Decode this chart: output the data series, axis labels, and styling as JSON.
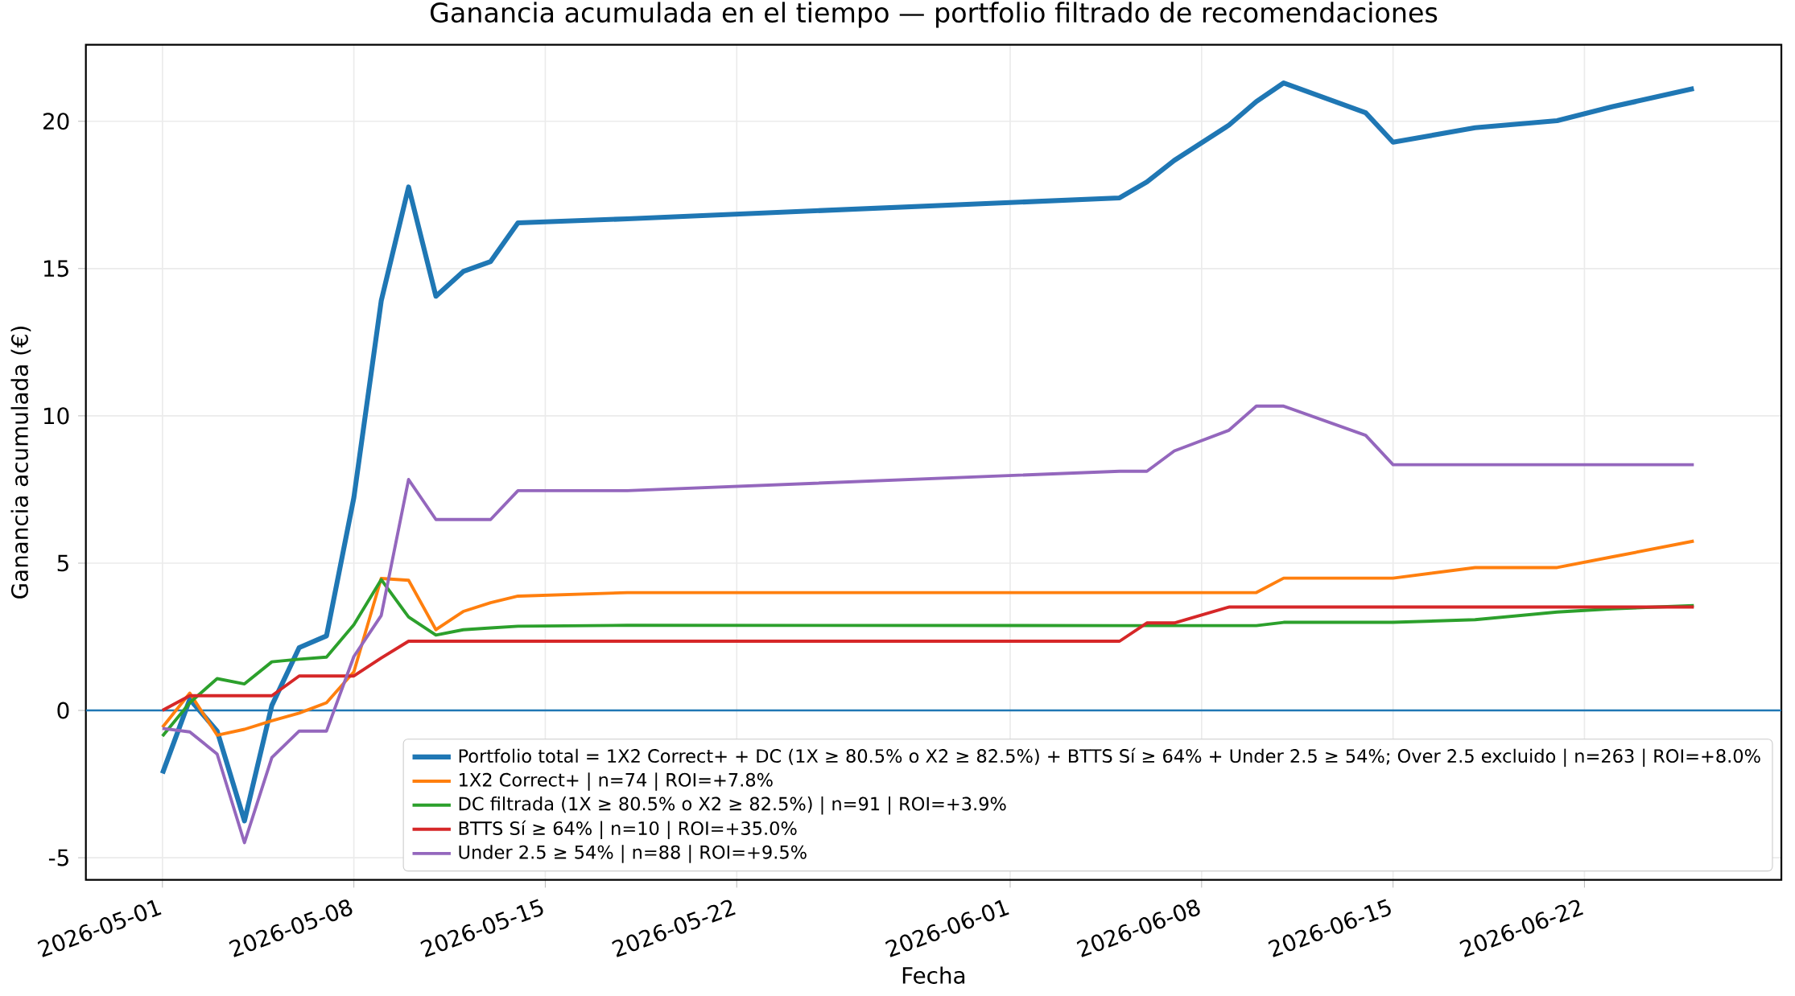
{
  "chart_data": {
    "type": "line",
    "title": "Ganancia acumulada en el tiempo — portfolio filtrado de recomendaciones",
    "xlabel": "Fecha",
    "ylabel": "Ganancia acumulada (€)",
    "x": [
      "2026-05-01",
      "2026-05-02",
      "2026-05-03",
      "2026-05-04",
      "2026-05-05",
      "2026-05-06",
      "2026-05-07",
      "2026-05-08",
      "2026-05-09",
      "2026-05-10",
      "2026-05-11",
      "2026-05-12",
      "2026-05-13",
      "2026-05-14",
      "2026-05-18",
      "2026-06-05",
      "2026-06-06",
      "2026-06-07",
      "2026-06-09",
      "2026-06-10",
      "2026-06-11",
      "2026-06-14",
      "2026-06-15",
      "2026-06-18",
      "2026-06-21",
      "2026-06-23",
      "2026-06-26"
    ],
    "series": [
      {
        "name": "Portfolio total = 1X2 Correct+ + DC (1X ≥ 80.5% o X2 ≥ 82.5%) + BTTS Sí ≥ 64% + Under 2.5 ≥ 54%; Over 2.5 excluido | n=263 | ROI=+8.0%",
        "color": "#1f77b4",
        "values": [
          -2.14,
          0.38,
          -0.7,
          -3.75,
          0.17,
          2.13,
          2.53,
          7.23,
          13.9,
          17.77,
          14.06,
          14.9,
          15.24,
          16.55,
          16.69,
          17.4,
          17.94,
          18.67,
          19.87,
          20.67,
          21.3,
          20.29,
          19.29,
          19.78,
          20.02,
          20.49,
          21.11
        ]
      },
      {
        "name": "1X2 Correct+ | n=74 | ROI=+7.8%",
        "color": "#ff7f0e",
        "values": [
          -0.57,
          0.59,
          -0.84,
          -0.64,
          -0.35,
          -0.09,
          0.26,
          1.31,
          4.48,
          4.42,
          2.74,
          3.36,
          3.66,
          3.88,
          4.0,
          4.0,
          4.0,
          4.0,
          4.0,
          4.0,
          4.49,
          4.49,
          4.49,
          4.85,
          4.85,
          5.21,
          5.75
        ]
      },
      {
        "name": "DC filtrada (1X ≥ 80.5% o X2 ≥ 82.5%) | n=91 | ROI=+3.9%",
        "color": "#2ca02c",
        "values": [
          -0.87,
          0.26,
          1.08,
          0.9,
          1.65,
          1.74,
          1.81,
          2.91,
          4.44,
          3.17,
          2.56,
          2.74,
          2.8,
          2.86,
          2.89,
          2.88,
          2.88,
          2.88,
          2.88,
          2.88,
          2.99,
          2.99,
          2.99,
          3.08,
          3.34,
          3.45,
          3.56
        ]
      },
      {
        "name": "BTTS Sí ≥ 64% | n=10 | ROI=+35.0%",
        "color": "#d62728",
        "values": [
          0,
          0.5,
          0.5,
          0.5,
          0.5,
          1.17,
          1.17,
          1.17,
          1.78,
          2.35,
          2.35,
          2.35,
          2.35,
          2.35,
          2.35,
          2.35,
          2.97,
          2.97,
          3.51,
          3.51,
          3.51,
          3.51,
          3.51,
          3.51,
          3.51,
          3.51,
          3.51
        ]
      },
      {
        "name": "Under 2.5 ≥ 54% | n=88 | ROI=+9.5%",
        "color": "#9467bd",
        "values": [
          -0.61,
          -0.73,
          -1.48,
          -4.49,
          -1.6,
          -0.7,
          -0.7,
          1.83,
          3.22,
          7.84,
          6.48,
          6.48,
          6.48,
          7.46,
          7.46,
          8.12,
          8.12,
          8.81,
          9.51,
          10.33,
          10.33,
          9.34,
          8.34,
          8.34,
          8.34,
          8.34,
          8.34
        ]
      }
    ],
    "xlim": [
      "2026-04-28T04:48",
      "2026-06-29T04:48"
    ],
    "xticks": [
      "2026-05-01",
      "2026-05-08",
      "2026-05-15",
      "2026-05-22",
      "2026-06-01",
      "2026-06-08",
      "2026-06-15",
      "2026-06-22"
    ],
    "ylim": [
      -5.75,
      22.6
    ],
    "yticks": [
      -5,
      0,
      5,
      10,
      15,
      20
    ],
    "ref_lines": [
      {
        "axis": "y",
        "value": 0,
        "color": "#1f77b4"
      }
    ],
    "grid": true,
    "legend": "bottom right",
    "line_style": "solid",
    "marker": "none"
  }
}
